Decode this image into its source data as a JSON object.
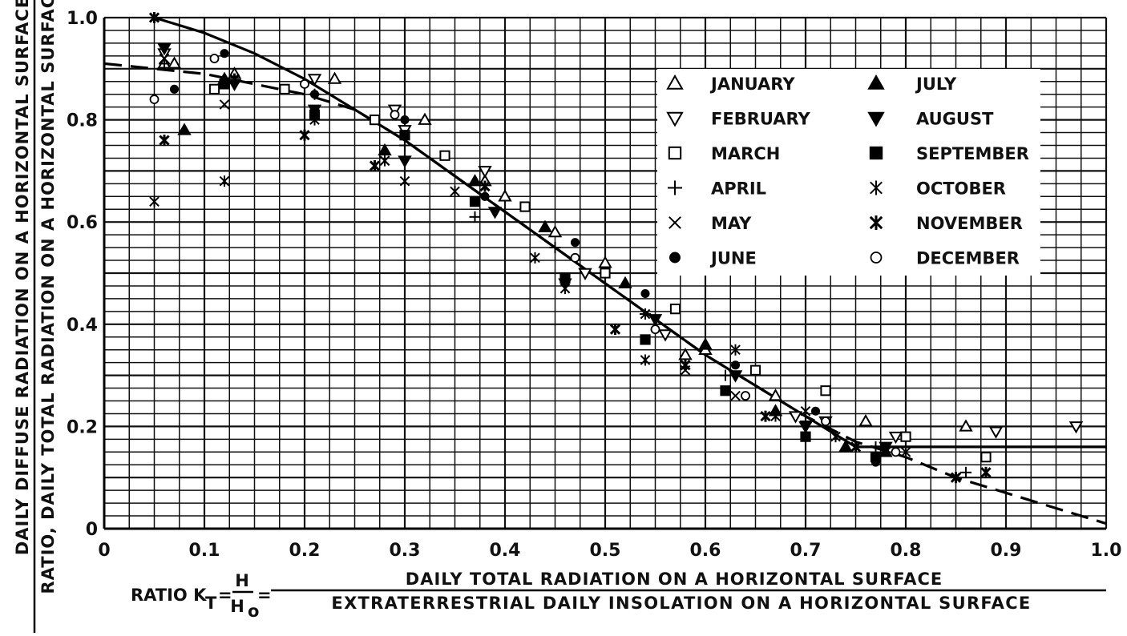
{
  "chart_data": {
    "type": "scatter",
    "xlim": [
      0,
      1.0
    ],
    "ylim": [
      0,
      1.0
    ],
    "grid": true,
    "legend_position": "upper-right",
    "x_ticks": [
      "0",
      "0.1",
      "0.2",
      "0.3",
      "0.4",
      "0.5",
      "0.6",
      "0.7",
      "0.8",
      "0.9",
      "1.0"
    ],
    "y_ticks": [
      "0",
      "0.2",
      "0.4",
      "0.6",
      "0.8",
      "1.0"
    ],
    "xlabel": {
      "prefix": "RATIO K",
      "subscript": "T",
      "eq": "=",
      "frac_num": "H",
      "frac_den_main": "H",
      "frac_den_sub": "o",
      "eq2": "=",
      "numerator": "DAILY TOTAL RADIATION ON A HORIZONTAL SURFACE",
      "denominator": "EXTRATERRESTRIAL DAILY INSOLATION ON A HORIZONTAL SURFACE"
    },
    "ylabel": {
      "numerator": "DAILY DIFFUSE RADIATION ON A HORIZONTAL SURFACE",
      "denominator": "RATIO, DAILY TOTAL RADIATION ON A HORIZONTAL SURFACE"
    },
    "series": [
      {
        "name": "JANUARY",
        "marker": "triangle-open",
        "points": [
          [
            0.06,
            0.91
          ],
          [
            0.07,
            0.91
          ],
          [
            0.13,
            0.89
          ],
          [
            0.23,
            0.88
          ],
          [
            0.32,
            0.8
          ],
          [
            0.38,
            0.68
          ],
          [
            0.4,
            0.65
          ],
          [
            0.45,
            0.58
          ],
          [
            0.5,
            0.52
          ],
          [
            0.58,
            0.34
          ],
          [
            0.6,
            0.35
          ],
          [
            0.67,
            0.26
          ],
          [
            0.76,
            0.21
          ],
          [
            0.86,
            0.2
          ]
        ]
      },
      {
        "name": "FEBRUARY",
        "marker": "triangle-down-open",
        "points": [
          [
            0.06,
            0.93
          ],
          [
            0.21,
            0.88
          ],
          [
            0.29,
            0.82
          ],
          [
            0.3,
            0.78
          ],
          [
            0.38,
            0.7
          ],
          [
            0.48,
            0.5
          ],
          [
            0.56,
            0.38
          ],
          [
            0.63,
            0.3
          ],
          [
            0.69,
            0.22
          ],
          [
            0.72,
            0.21
          ],
          [
            0.79,
            0.18
          ],
          [
            0.89,
            0.19
          ],
          [
            0.97,
            0.2
          ]
        ]
      },
      {
        "name": "MARCH",
        "marker": "square-open",
        "points": [
          [
            0.11,
            0.86
          ],
          [
            0.18,
            0.86
          ],
          [
            0.27,
            0.8
          ],
          [
            0.34,
            0.73
          ],
          [
            0.42,
            0.63
          ],
          [
            0.5,
            0.5
          ],
          [
            0.57,
            0.43
          ],
          [
            0.65,
            0.31
          ],
          [
            0.72,
            0.27
          ],
          [
            0.8,
            0.18
          ],
          [
            0.88,
            0.14
          ]
        ]
      },
      {
        "name": "APRIL",
        "marker": "plus",
        "points": [
          [
            0.06,
            0.91
          ],
          [
            0.21,
            0.85
          ],
          [
            0.3,
            0.75
          ],
          [
            0.37,
            0.61
          ],
          [
            0.45,
            0.55
          ],
          [
            0.54,
            0.42
          ],
          [
            0.62,
            0.3
          ],
          [
            0.7,
            0.21
          ],
          [
            0.77,
            0.16
          ],
          [
            0.86,
            0.11
          ]
        ]
      },
      {
        "name": "MAY",
        "marker": "x",
        "points": [
          [
            0.06,
            0.92
          ],
          [
            0.12,
            0.83
          ],
          [
            0.21,
            0.82
          ],
          [
            0.28,
            0.72
          ],
          [
            0.3,
            0.68
          ],
          [
            0.37,
            0.64
          ],
          [
            0.46,
            0.49
          ],
          [
            0.54,
            0.42
          ],
          [
            0.58,
            0.31
          ],
          [
            0.63,
            0.26
          ],
          [
            0.7,
            0.23
          ],
          [
            0.78,
            0.15
          ]
        ]
      },
      {
        "name": "JUNE",
        "marker": "circle-filled",
        "points": [
          [
            0.07,
            0.86
          ],
          [
            0.12,
            0.93
          ],
          [
            0.21,
            0.85
          ],
          [
            0.3,
            0.8
          ],
          [
            0.38,
            0.65
          ],
          [
            0.47,
            0.56
          ],
          [
            0.54,
            0.46
          ],
          [
            0.63,
            0.32
          ],
          [
            0.71,
            0.23
          ],
          [
            0.77,
            0.13
          ]
        ]
      },
      {
        "name": "JULY",
        "marker": "triangle-filled",
        "points": [
          [
            0.08,
            0.78
          ],
          [
            0.12,
            0.88
          ],
          [
            0.28,
            0.74
          ],
          [
            0.37,
            0.68
          ],
          [
            0.44,
            0.59
          ],
          [
            0.52,
            0.48
          ],
          [
            0.6,
            0.36
          ],
          [
            0.67,
            0.23
          ],
          [
            0.74,
            0.16
          ],
          [
            0.78,
            0.15
          ]
        ]
      },
      {
        "name": "AUGUST",
        "marker": "triangle-down-filled",
        "points": [
          [
            0.06,
            0.94
          ],
          [
            0.13,
            0.87
          ],
          [
            0.21,
            0.82
          ],
          [
            0.3,
            0.72
          ],
          [
            0.39,
            0.62
          ],
          [
            0.46,
            0.48
          ],
          [
            0.55,
            0.41
          ],
          [
            0.63,
            0.3
          ],
          [
            0.7,
            0.2
          ],
          [
            0.78,
            0.16
          ]
        ]
      },
      {
        "name": "SEPTEMBER",
        "marker": "square-filled",
        "points": [
          [
            0.12,
            0.87
          ],
          [
            0.21,
            0.81
          ],
          [
            0.3,
            0.77
          ],
          [
            0.37,
            0.64
          ],
          [
            0.46,
            0.49
          ],
          [
            0.54,
            0.37
          ],
          [
            0.62,
            0.27
          ],
          [
            0.7,
            0.18
          ],
          [
            0.77,
            0.14
          ]
        ]
      },
      {
        "name": "OCTOBER",
        "marker": "asterisk",
        "points": [
          [
            0.05,
            0.64
          ],
          [
            0.12,
            0.68
          ],
          [
            0.21,
            0.8
          ],
          [
            0.28,
            0.72
          ],
          [
            0.35,
            0.66
          ],
          [
            0.43,
            0.53
          ],
          [
            0.46,
            0.47
          ],
          [
            0.54,
            0.33
          ],
          [
            0.63,
            0.35
          ],
          [
            0.67,
            0.22
          ],
          [
            0.73,
            0.18
          ],
          [
            0.8,
            0.15
          ]
        ]
      },
      {
        "name": "NOVEMBER",
        "marker": "asterisk-bold",
        "points": [
          [
            0.05,
            1.0
          ],
          [
            0.06,
            0.76
          ],
          [
            0.13,
            0.88
          ],
          [
            0.2,
            0.77
          ],
          [
            0.27,
            0.71
          ],
          [
            0.38,
            0.67
          ],
          [
            0.51,
            0.39
          ],
          [
            0.58,
            0.32
          ],
          [
            0.66,
            0.22
          ],
          [
            0.75,
            0.16
          ],
          [
            0.85,
            0.1
          ],
          [
            0.88,
            0.11
          ]
        ]
      },
      {
        "name": "DECEMBER",
        "marker": "circle-open",
        "points": [
          [
            0.05,
            0.84
          ],
          [
            0.11,
            0.92
          ],
          [
            0.2,
            0.87
          ],
          [
            0.29,
            0.81
          ],
          [
            0.47,
            0.53
          ],
          [
            0.55,
            0.39
          ],
          [
            0.64,
            0.26
          ],
          [
            0.72,
            0.21
          ],
          [
            0.79,
            0.15
          ]
        ]
      }
    ],
    "curves": [
      {
        "style": "solid",
        "points": [
          [
            0.05,
            1.0
          ],
          [
            0.1,
            0.97
          ],
          [
            0.15,
            0.93
          ],
          [
            0.2,
            0.88
          ],
          [
            0.25,
            0.82
          ],
          [
            0.3,
            0.76
          ],
          [
            0.35,
            0.69
          ],
          [
            0.4,
            0.62
          ],
          [
            0.45,
            0.55
          ],
          [
            0.5,
            0.48
          ],
          [
            0.55,
            0.41
          ],
          [
            0.6,
            0.34
          ],
          [
            0.65,
            0.28
          ],
          [
            0.7,
            0.22
          ],
          [
            0.75,
            0.16
          ],
          [
            0.76,
            0.16
          ],
          [
            1.0,
            0.16
          ]
        ]
      },
      {
        "style": "dashed",
        "points": [
          [
            0.0,
            0.91
          ],
          [
            0.1,
            0.89
          ],
          [
            0.2,
            0.85
          ],
          [
            0.25,
            0.82
          ],
          [
            0.3,
            0.76
          ],
          [
            0.35,
            0.69
          ],
          [
            0.4,
            0.62
          ],
          [
            0.45,
            0.55
          ],
          [
            0.5,
            0.48
          ],
          [
            0.55,
            0.41
          ],
          [
            0.6,
            0.34
          ],
          [
            0.65,
            0.28
          ],
          [
            0.7,
            0.22
          ],
          [
            0.75,
            0.17
          ],
          [
            0.8,
            0.14
          ],
          [
            0.85,
            0.1
          ],
          [
            0.9,
            0.07
          ],
          [
            0.95,
            0.04
          ],
          [
            1.0,
            0.01
          ]
        ]
      }
    ]
  }
}
